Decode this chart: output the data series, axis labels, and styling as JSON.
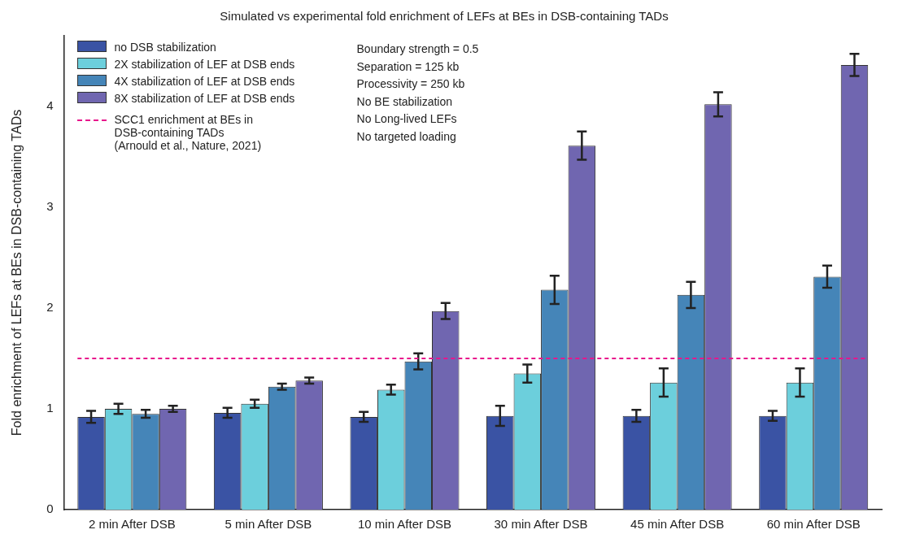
{
  "chart_data": {
    "type": "bar",
    "title": "Simulated vs experimental fold enrichment of LEFs at BEs in DSB-containing TADs",
    "ylabel": "Fold enrichment of LEFs at BEs in DSB-containing TADs",
    "categories": [
      "2 min After DSB",
      "5 min After DSB",
      "10 min After DSB",
      "30 min After DSB",
      "45 min After DSB",
      "60 min After DSB"
    ],
    "series": [
      {
        "name": "no DSB stabilization",
        "color": "#3a53a4",
        "values": [
          0.92,
          0.96,
          0.92,
          0.93,
          0.93,
          0.93
        ],
        "errors": [
          0.06,
          0.05,
          0.05,
          0.1,
          0.06,
          0.05
        ]
      },
      {
        "name": "2X stabilization of LEF at DSB ends",
        "color": "#6ccfdc",
        "values": [
          1.0,
          1.05,
          1.19,
          1.35,
          1.26,
          1.26
        ],
        "errors": [
          0.05,
          0.04,
          0.05,
          0.09,
          0.14,
          0.14
        ]
      },
      {
        "name": "4X stabilization of LEF at DSB ends",
        "color": "#4585b8",
        "values": [
          0.95,
          1.22,
          1.47,
          2.18,
          2.13,
          2.31
        ],
        "errors": [
          0.04,
          0.03,
          0.08,
          0.14,
          0.13,
          0.11
        ]
      },
      {
        "name": "8X stabilization of LEF at DSB ends",
        "color": "#7066b0",
        "values": [
          1.0,
          1.28,
          1.97,
          3.61,
          4.02,
          4.41
        ],
        "errors": [
          0.03,
          0.03,
          0.08,
          0.14,
          0.12,
          0.11
        ]
      }
    ],
    "ref_lines": [
      {
        "axis": "y",
        "value": 1.5,
        "label": "SCC1 enrichment at BEs in DSB-containing TADs (Arnould et al., Nature, 2021)",
        "color": "#e8168c",
        "line_style": "dashed"
      }
    ],
    "annotations": [
      "Boundary strength = 0.5",
      "Separation = 125 kb",
      "Processivity = 250 kb",
      "No BE stabilization",
      "No Long-lived LEFs",
      "No targeted loading"
    ],
    "ylim": [
      0,
      4.7
    ],
    "yticks": [
      0,
      1,
      2,
      3,
      4
    ],
    "grid": false,
    "legend": "top left"
  }
}
